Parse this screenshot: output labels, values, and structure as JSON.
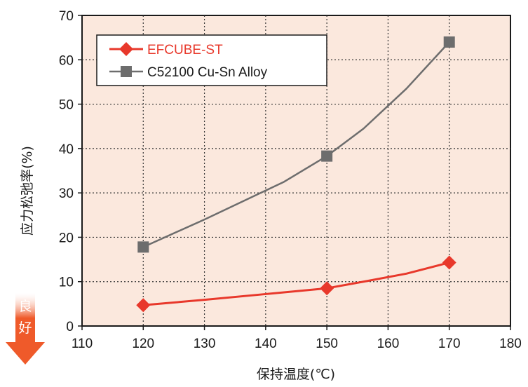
{
  "chart_data": {
    "type": "line",
    "xlabel": "保持温度(℃)",
    "ylabel": "应力松弛率(%)",
    "xlim": [
      110,
      180
    ],
    "ylim": [
      0,
      70
    ],
    "x_ticks": [
      "110",
      "120",
      "130",
      "140",
      "150",
      "160",
      "170",
      "180"
    ],
    "y_ticks": [
      "0",
      "10",
      "20",
      "30",
      "40",
      "50",
      "60",
      "70"
    ],
    "grid": true,
    "legend_position": "top-left",
    "series": [
      {
        "name": "EFCUBE-ST",
        "color": "#e8382b",
        "marker": "diamond",
        "x": [
          120,
          150,
          170
        ],
        "y": [
          4.7,
          8.5,
          14.3
        ],
        "curve_x": [
          120,
          130,
          140,
          150,
          156,
          163,
          170
        ],
        "curve_y": [
          4.7,
          5.9,
          7.2,
          8.5,
          10.0,
          11.8,
          14.3
        ]
      },
      {
        "name": "C52100 Cu-Sn Alloy",
        "color": "#6d6d6d",
        "marker": "square",
        "x": [
          120,
          150,
          170
        ],
        "y": [
          17.8,
          38.3,
          64.0
        ],
        "curve_x": [
          120,
          130,
          143,
          150,
          156,
          163,
          170
        ],
        "curve_y": [
          17.8,
          24.0,
          32.5,
          38.3,
          44.5,
          53.5,
          64.0
        ]
      }
    ],
    "badge": {
      "chars": [
        "良",
        "好"
      ],
      "color": "#ef5a2a"
    },
    "plot_background": "#fbe8dd"
  }
}
